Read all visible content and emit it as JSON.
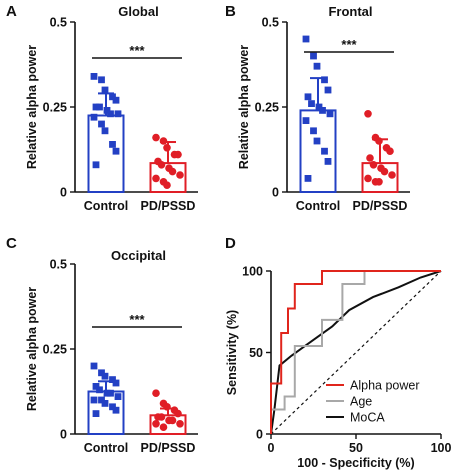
{
  "colors": {
    "control": "#2340c4",
    "pd": "#e01e26",
    "alpha": "#e0251c",
    "age": "#a8a8a8",
    "moca": "#111111",
    "axis": "#111111"
  },
  "chart_data": [
    {
      "type": "bar",
      "panel_label": "A",
      "title": "Global",
      "ylabel": "Relative alpha power",
      "ylim": [
        0,
        0.5
      ],
      "yticks": [
        "0",
        "0.25",
        "0.5"
      ],
      "categories": [
        "Control",
        "PD/PSSD"
      ],
      "means": [
        0.225,
        0.085
      ],
      "sd": [
        0.065,
        0.062
      ],
      "points": [
        [
          0.34,
          0.33,
          0.3,
          0.28,
          0.27,
          0.25,
          0.25,
          0.24,
          0.23,
          0.23,
          0.22,
          0.2,
          0.18,
          0.14,
          0.12,
          0.08
        ],
        [
          0.16,
          0.15,
          0.13,
          0.11,
          0.11,
          0.09,
          0.08,
          0.07,
          0.06,
          0.05,
          0.04,
          0.03,
          0.02
        ]
      ],
      "significance": "***"
    },
    {
      "type": "bar",
      "panel_label": "B",
      "title": "Frontal",
      "ylabel": "Relative alpha power",
      "ylim": [
        0,
        0.5
      ],
      "yticks": [
        "0",
        "0.25",
        "0.5"
      ],
      "categories": [
        "Control",
        "PD/PSSD"
      ],
      "means": [
        0.24,
        0.085
      ],
      "sd": [
        0.095,
        0.07
      ],
      "points": [
        [
          0.45,
          0.4,
          0.37,
          0.33,
          0.3,
          0.28,
          0.26,
          0.25,
          0.24,
          0.23,
          0.21,
          0.18,
          0.15,
          0.12,
          0.09,
          0.04
        ],
        [
          0.23,
          0.16,
          0.15,
          0.13,
          0.12,
          0.1,
          0.08,
          0.07,
          0.06,
          0.05,
          0.04,
          0.03,
          0.03
        ]
      ],
      "significance": "***"
    },
    {
      "type": "bar",
      "panel_label": "C",
      "title": "Occipital",
      "ylabel": "Relative alpha power",
      "ylim": [
        0,
        0.5
      ],
      "yticks": [
        "0",
        "0.25",
        "0.5"
      ],
      "categories": [
        "Control",
        "PD/PSSD"
      ],
      "means": [
        0.125,
        0.055
      ],
      "sd": [
        0.03,
        0.02
      ],
      "points": [
        [
          0.2,
          0.18,
          0.17,
          0.16,
          0.15,
          0.14,
          0.13,
          0.12,
          0.12,
          0.11,
          0.1,
          0.1,
          0.09,
          0.08,
          0.07,
          0.06
        ],
        [
          0.12,
          0.09,
          0.08,
          0.07,
          0.06,
          0.05,
          0.05,
          0.04,
          0.04,
          0.03,
          0.03,
          0.02
        ]
      ],
      "significance": "***"
    },
    {
      "type": "line",
      "panel_label": "D",
      "title": "",
      "xlabel": "100 - Specificity (%)",
      "ylabel": "Sensitivity (%)",
      "xlim": [
        0,
        100
      ],
      "ylim": [
        0,
        100
      ],
      "xticks": [
        "0",
        "50",
        "100"
      ],
      "yticks": [
        "0",
        "50",
        "100"
      ],
      "legend_position": "bottom-right",
      "series": [
        {
          "name": "Alpha power",
          "color_key": "alpha",
          "dash": "",
          "points": [
            [
              0,
              0
            ],
            [
              0,
              31
            ],
            [
              6,
              31
            ],
            [
              6,
              62
            ],
            [
              10,
              62
            ],
            [
              10,
              77
            ],
            [
              14,
              77
            ],
            [
              14,
              92
            ],
            [
              30,
              92
            ],
            [
              30,
              100
            ],
            [
              100,
              100
            ]
          ]
        },
        {
          "name": "Age",
          "color_key": "age",
          "dash": "",
          "points": [
            [
              0,
              0
            ],
            [
              0,
              15
            ],
            [
              8,
              15
            ],
            [
              8,
              23
            ],
            [
              14,
              23
            ],
            [
              14,
              54
            ],
            [
              30,
              54
            ],
            [
              30,
              70
            ],
            [
              42,
              70
            ],
            [
              42,
              92
            ],
            [
              55,
              92
            ],
            [
              55,
              100
            ],
            [
              100,
              100
            ]
          ]
        },
        {
          "name": "MoCA",
          "color_key": "moca",
          "dash": "",
          "points": [
            [
              0,
              0
            ],
            [
              2,
              15
            ],
            [
              5,
              42
            ],
            [
              12,
              48
            ],
            [
              20,
              54
            ],
            [
              28,
              60
            ],
            [
              36,
              66
            ],
            [
              46,
              76
            ],
            [
              60,
              84
            ],
            [
              75,
              90
            ],
            [
              88,
              96
            ],
            [
              100,
              100
            ]
          ]
        },
        {
          "name": "",
          "color_key": "moca",
          "dash": "3,3",
          "points": [
            [
              0,
              0
            ],
            [
              100,
              100
            ]
          ]
        }
      ]
    }
  ]
}
